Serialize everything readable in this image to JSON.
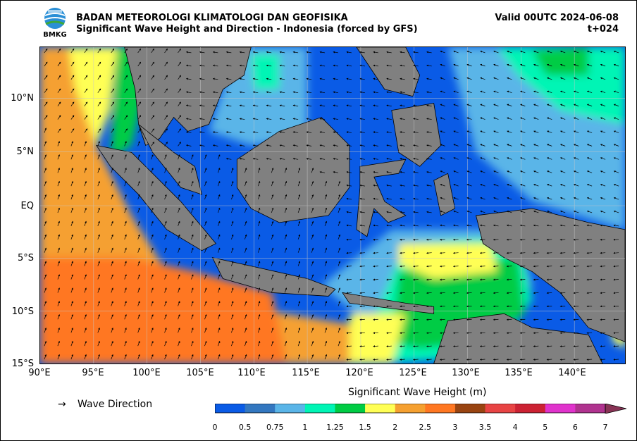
{
  "header": {
    "agency": "BADAN METEOROLOGI KLIMATOLOGI DAN GEOFISIKA",
    "subtitle": "Significant Wave Height and Direction - Indonesia (forced by GFS)",
    "valid": "Valid 00UTC 2024-06-08",
    "step": "t+024",
    "logo_text": "BMKG"
  },
  "map": {
    "lat_labels": [
      "10°N",
      "5°N",
      "EQ",
      "5°S",
      "10°S",
      "15°S"
    ],
    "lon_labels": [
      "90°E",
      "95°E",
      "100°E",
      "105°E",
      "110°E",
      "115°E",
      "120°E",
      "125°E",
      "130°E",
      "135°E",
      "140°E"
    ],
    "lon_range": [
      90,
      145
    ],
    "lat_range": [
      -15,
      15
    ],
    "land_color": "#808080",
    "grid": true
  },
  "legend": {
    "wave_direction_label": "Wave Direction",
    "arrow_glyph": "→"
  },
  "colorbar": {
    "title": "Significant Wave Height (m)",
    "ticks": [
      "0",
      "0.5",
      "0.75",
      "1",
      "1.25",
      "1.5",
      "2",
      "2.5",
      "3",
      "3.5",
      "4",
      "5",
      "6",
      "7"
    ],
    "colors": [
      "#0a5be6",
      "#3377c0",
      "#5ab5e8",
      "#00f5b5",
      "#00cc44",
      "#ffff55",
      "#f5a030",
      "#ff7722",
      "#994411",
      "#e84444",
      "#cc2233",
      "#e033cc",
      "#b0338f",
      "#883355"
    ]
  }
}
